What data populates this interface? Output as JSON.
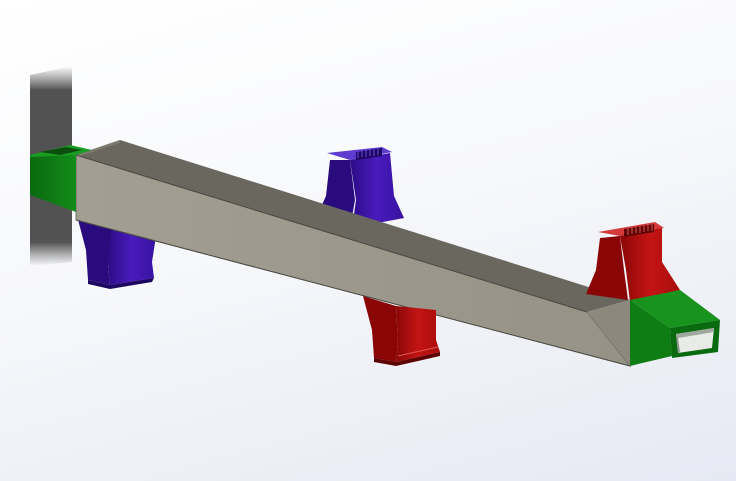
{
  "model": {
    "parts": [
      {
        "name": "beam",
        "color": "#9b978b"
      },
      {
        "name": "end-connector-left",
        "color": "#0d7a12"
      },
      {
        "name": "end-connector-right",
        "color": "#0d7a12"
      },
      {
        "name": "bracket-left-lower",
        "color": "#3d14a8"
      },
      {
        "name": "bracket-center-upper",
        "color": "#3d14a8"
      },
      {
        "name": "bracket-center-lower",
        "color": "#b80f0f"
      },
      {
        "name": "bracket-right-upper",
        "color": "#b80f0f"
      },
      {
        "name": "mounting-plate",
        "color": "#3a3a3a"
      }
    ]
  }
}
